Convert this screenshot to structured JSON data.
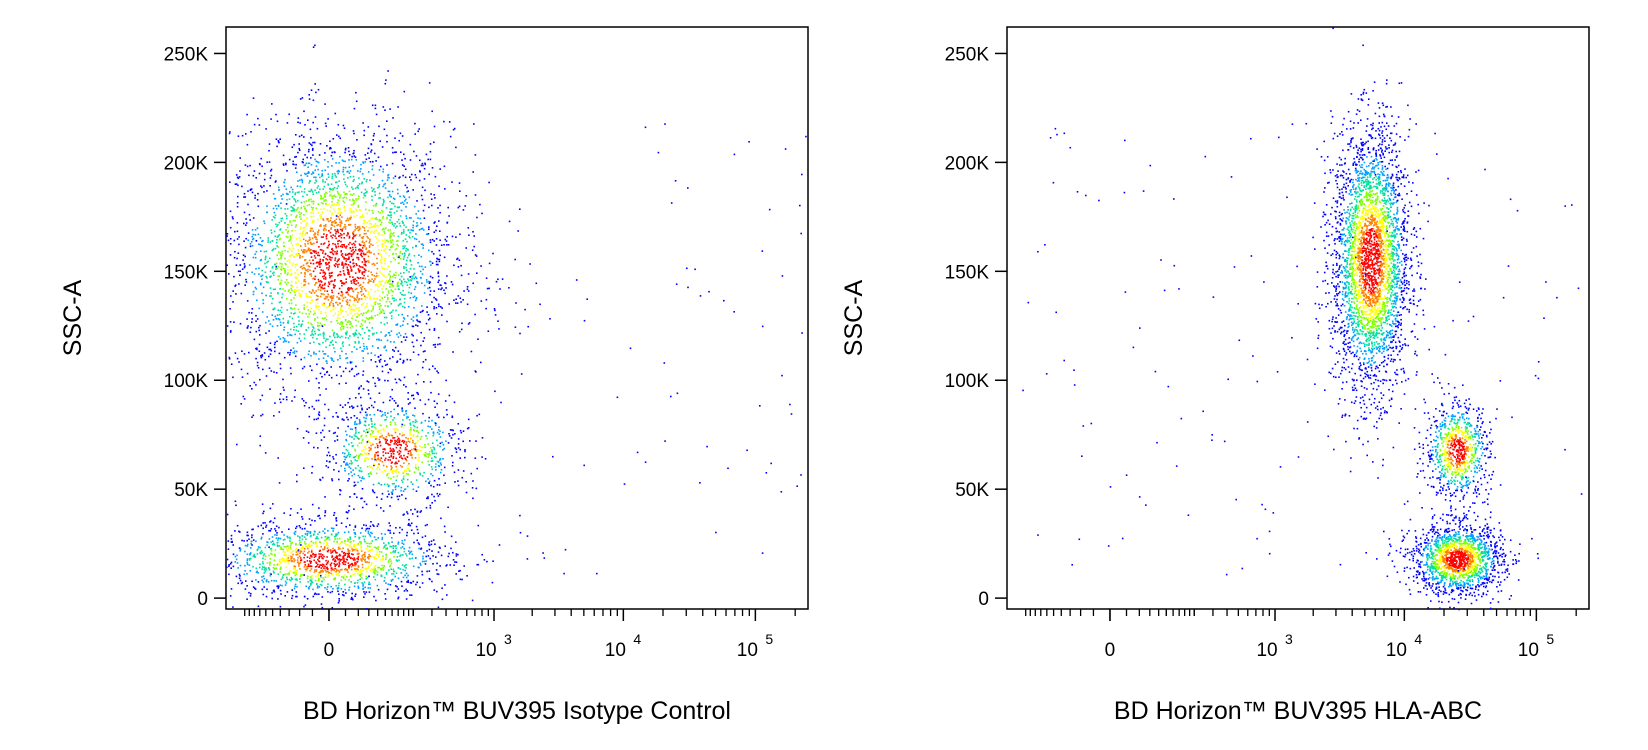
{
  "colors": {
    "background": "#ffffff",
    "axis": "#000000",
    "density_scale": [
      "#0000ff",
      "#00a0ff",
      "#00e0a0",
      "#80ff00",
      "#ffff00",
      "#ff8000",
      "#ff0000"
    ]
  },
  "chart_data": [
    {
      "type": "scatter",
      "subtype": "flow cytometry density plot",
      "xlabel": "BD Horizon™ BUV395 Isotype Control",
      "ylabel": "SSC-A",
      "x_scale": "biexponential",
      "xlim": [
        -300,
        250000
      ],
      "ylim": [
        -5000,
        262144
      ],
      "y_ticks": [
        {
          "value": 0,
          "label": "0"
        },
        {
          "value": 50000,
          "label": "50K"
        },
        {
          "value": 100000,
          "label": "100K"
        },
        {
          "value": 150000,
          "label": "150K"
        },
        {
          "value": 200000,
          "label": "200K"
        },
        {
          "value": 250000,
          "label": "250K"
        }
      ],
      "x_ticks": [
        {
          "value": 0,
          "base": "0",
          "exp": ""
        },
        {
          "value": 1000,
          "base": "10",
          "exp": "3"
        },
        {
          "value": 10000,
          "base": "10",
          "exp": "4"
        },
        {
          "value": 100000,
          "base": "10",
          "exp": "5"
        }
      ],
      "grid": false,
      "legend": "none",
      "populations": [
        {
          "name": "",
          "x_center": 10,
          "y_center": 155000,
          "x_spread": 120,
          "y_spread": 30000,
          "events": 3300
        },
        {
          "name": "",
          "x_center": 120,
          "y_center": 68000,
          "x_spread": 150,
          "y_spread": 12000,
          "events": 850
        },
        {
          "name": "",
          "x_center": 0,
          "y_center": 18000,
          "x_spread": 110,
          "y_spread": 9000,
          "events": 1500
        }
      ]
    },
    {
      "type": "scatter",
      "subtype": "flow cytometry density plot",
      "xlabel": "BD Horizon™ BUV395 HLA-ABC",
      "ylabel": "SSC-A",
      "x_scale": "biexponential",
      "xlim": [
        -300,
        250000
      ],
      "ylim": [
        -5000,
        262144
      ],
      "y_ticks": [
        {
          "value": 0,
          "label": "0"
        },
        {
          "value": 50000,
          "label": "50K"
        },
        {
          "value": 100000,
          "label": "100K"
        },
        {
          "value": 150000,
          "label": "150K"
        },
        {
          "value": 200000,
          "label": "200K"
        },
        {
          "value": 250000,
          "label": "250K"
        }
      ],
      "x_ticks": [
        {
          "value": 0,
          "base": "0",
          "exp": ""
        },
        {
          "value": 1000,
          "base": "10",
          "exp": "3"
        },
        {
          "value": 10000,
          "base": "10",
          "exp": "4"
        },
        {
          "value": 100000,
          "base": "10",
          "exp": "5"
        }
      ],
      "grid": false,
      "legend": "none",
      "populations": [
        {
          "name": "",
          "x_center": 5500,
          "y_center": 155000,
          "x_spread": 2200,
          "y_spread": 30000,
          "events": 3300
        },
        {
          "name": "",
          "x_center": 25000,
          "y_center": 68000,
          "x_spread": 7000,
          "y_spread": 11000,
          "events": 800
        },
        {
          "name": "",
          "x_center": 25000,
          "y_center": 18000,
          "x_spread": 12000,
          "y_spread": 8000,
          "events": 1600
        }
      ]
    }
  ]
}
